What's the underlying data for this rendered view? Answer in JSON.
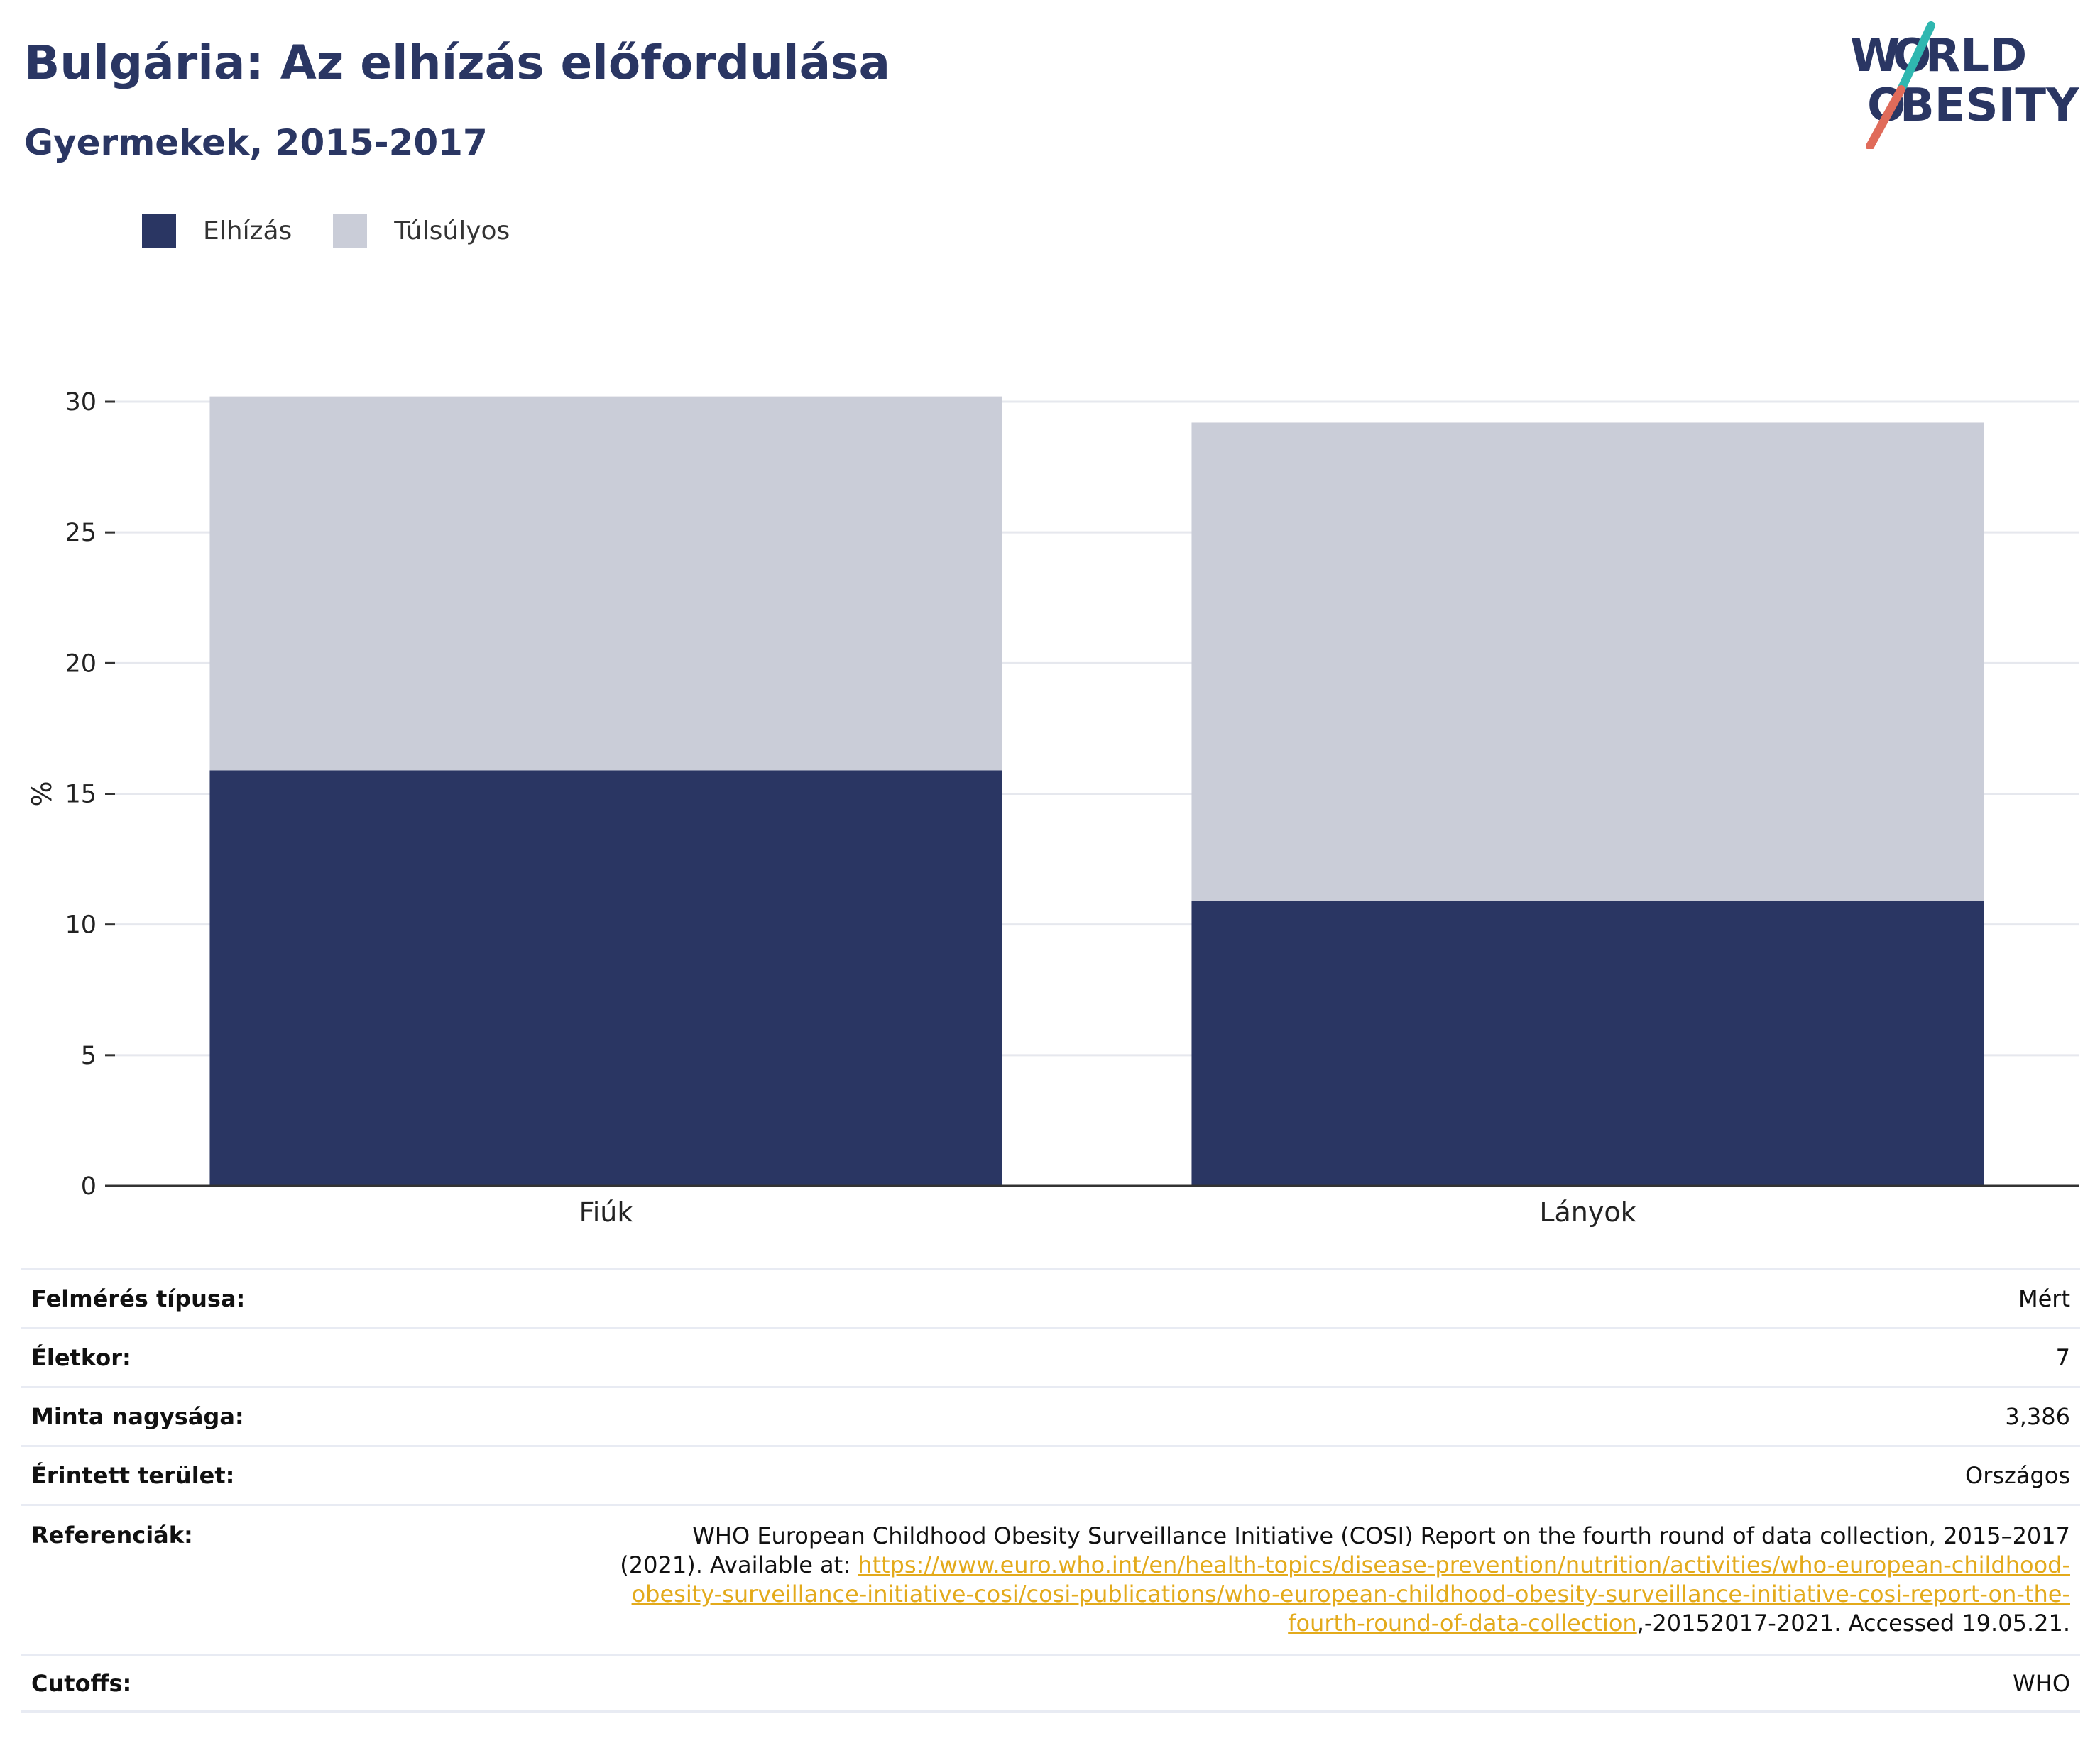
{
  "header": {
    "title": "Bulgária: Az elhízás előfordulása",
    "subtitle": "Gyermekek, 2015-2017"
  },
  "logo": {
    "line1_letter1": "W",
    "line1_letter2": "O",
    "line1_rest": "RLD",
    "line2_letter1": "O",
    "line2_rest": "BESITY",
    "text_color": "#2a3663",
    "slash_color_top": "#2fb7b0",
    "slash_color_bottom": "#e06b5a"
  },
  "colors": {
    "obesity": "#2a3663",
    "overweight": "#cacdd8",
    "grid": "#e6e8ee",
    "axis": "#333333"
  },
  "chart_data": {
    "type": "bar",
    "stacked": true,
    "categories": [
      "Fiúk",
      "Lányok"
    ],
    "series": [
      {
        "name": "Elhízás",
        "values": [
          15.9,
          10.9
        ]
      },
      {
        "name": "Túlsúlyos",
        "values": [
          14.3,
          18.3
        ]
      }
    ],
    "ylabel": "%",
    "ylim": [
      0,
      30
    ],
    "yticks": [
      0,
      5,
      10,
      15,
      20,
      25,
      30
    ],
    "grid": true,
    "legend": "top-left"
  },
  "meta": [
    {
      "key": "Felmérés típusa:",
      "value": "Mért"
    },
    {
      "key": "Életkor:",
      "value": "7"
    },
    {
      "key": "Minta nagysága:",
      "value": "3,386"
    },
    {
      "key": "Érintett terület:",
      "value": "Országos"
    }
  ],
  "reference": {
    "key": "Referenciák:",
    "text_before": "WHO European Childhood Obesity Surveillance Initiative (COSI) Report on the fourth round of data collection, 2015–2017 (2021). Available at: ",
    "link": "https://www.euro.who.int/en/health-topics/disease-prevention/nutrition/activities/who-european-childhood-obesity-surveillance-initiative-cosi/cosi-publications/who-european-childhood-obesity-surveillance-initiative-cosi-report-on-the-fourth-round-of-data-collection",
    "text_after": ",-20152017-2021. Accessed 19.05.21."
  },
  "cutoffs": {
    "key": "Cutoffs:",
    "value": "WHO"
  }
}
